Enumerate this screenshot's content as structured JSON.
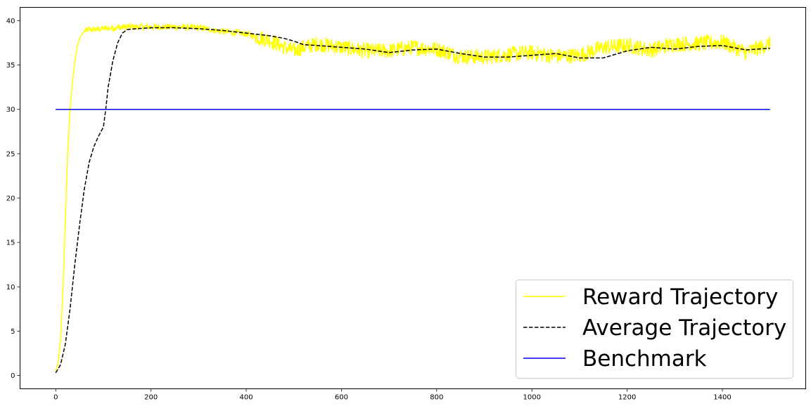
{
  "chart_data": {
    "type": "line",
    "title": "",
    "xlabel": "",
    "ylabel": "",
    "xlim": [
      -75,
      1575
    ],
    "ylim": [
      -1.5,
      41.5
    ],
    "xticks": [
      0,
      200,
      400,
      600,
      800,
      1000,
      1200,
      1400
    ],
    "yticks": [
      0,
      5,
      10,
      15,
      20,
      25,
      30,
      35,
      40
    ],
    "grid": false,
    "legend_position": "lower-right",
    "series": [
      {
        "name": "Reward Trajectory",
        "color": "#ffff00",
        "style": "solid",
        "noisy": true,
        "x": [
          0,
          5,
          10,
          15,
          20,
          25,
          30,
          35,
          40,
          45,
          50,
          55,
          60,
          70,
          80,
          100,
          120,
          150,
          200,
          250,
          300,
          350,
          400,
          450,
          480,
          500,
          520,
          550,
          600,
          650,
          700,
          750,
          800,
          850,
          900,
          950,
          1000,
          1050,
          1100,
          1150,
          1200,
          1250,
          1300,
          1350,
          1400,
          1450,
          1500
        ],
        "y": [
          0.5,
          1.5,
          4.0,
          9.5,
          17.5,
          25.0,
          30.0,
          33.0,
          35.5,
          37.0,
          38.0,
          38.5,
          38.8,
          39.0,
          39.0,
          39.1,
          39.2,
          39.3,
          39.3,
          39.3,
          39.2,
          38.8,
          38.5,
          37.8,
          37.0,
          36.6,
          37.0,
          37.4,
          37.0,
          36.6,
          36.6,
          37.0,
          36.8,
          36.0,
          35.9,
          36.2,
          36.4,
          36.0,
          36.1,
          37.0,
          37.2,
          36.7,
          37.4,
          37.4,
          37.6,
          36.4,
          37.4
        ]
      },
      {
        "name": "Average Trajectory",
        "color": "#000000",
        "style": "dashed",
        "x": [
          0,
          10,
          20,
          30,
          40,
          50,
          60,
          70,
          80,
          90,
          100,
          105,
          110,
          120,
          130,
          140,
          150,
          170,
          200,
          250,
          300,
          350,
          400,
          450,
          480,
          500,
          520,
          550,
          600,
          650,
          700,
          750,
          800,
          850,
          900,
          950,
          1000,
          1050,
          1100,
          1150,
          1200,
          1250,
          1300,
          1350,
          1400,
          1450,
          1500
        ],
        "y": [
          0.3,
          1.2,
          3.5,
          7.5,
          12.5,
          17.0,
          21.0,
          24.0,
          25.8,
          27.0,
          28.0,
          30.0,
          32.5,
          35.5,
          37.5,
          38.6,
          39.0,
          39.1,
          39.2,
          39.2,
          39.1,
          38.9,
          38.6,
          38.3,
          38.0,
          37.7,
          37.3,
          37.2,
          37.0,
          36.8,
          36.4,
          36.7,
          36.8,
          36.3,
          35.9,
          35.9,
          36.1,
          36.3,
          35.8,
          35.8,
          36.6,
          37.0,
          36.8,
          37.1,
          37.2,
          36.7,
          36.9
        ]
      },
      {
        "name": "Benchmark",
        "color": "#0000ff",
        "style": "solid",
        "x": [
          0,
          1500
        ],
        "y": [
          30,
          30
        ]
      }
    ]
  }
}
